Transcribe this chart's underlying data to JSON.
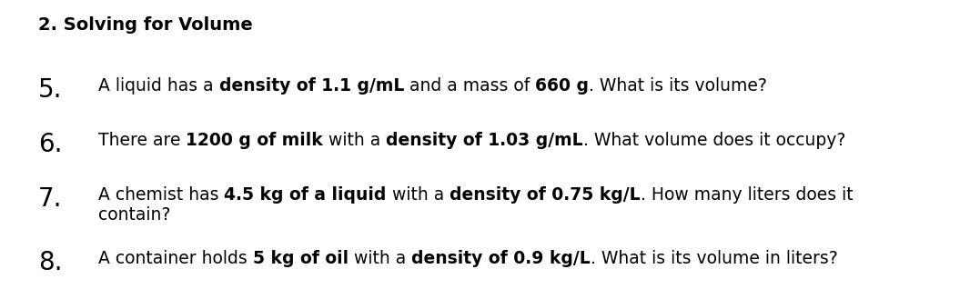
{
  "background_color": "#ffffff",
  "title": "2. Solving for Volume",
  "title_fontsize": 14,
  "questions": [
    {
      "number": "5.",
      "number_fontsize": 20,
      "text_fontsize": 13.5,
      "segments": [
        {
          "text": "A liquid has a ",
          "bold": false
        },
        {
          "text": "density of 1.1 g/mL",
          "bold": true
        },
        {
          "text": " and a mass of ",
          "bold": false
        },
        {
          "text": "660 g",
          "bold": true
        },
        {
          "text": ". What is its volume?",
          "bold": false
        }
      ]
    },
    {
      "number": "6.",
      "number_fontsize": 20,
      "text_fontsize": 13.5,
      "segments": [
        {
          "text": "There are ",
          "bold": false
        },
        {
          "text": "1200 g of milk",
          "bold": true
        },
        {
          "text": " with a ",
          "bold": false
        },
        {
          "text": "density of 1.03 g/mL",
          "bold": true
        },
        {
          "text": ". What volume does it occupy?",
          "bold": false
        }
      ]
    },
    {
      "number": "7.",
      "number_fontsize": 20,
      "text_fontsize": 13.5,
      "segments": [
        {
          "text": "A chemist has ",
          "bold": false
        },
        {
          "text": "4.5 kg of a liquid",
          "bold": true
        },
        {
          "text": " with a ",
          "bold": false
        },
        {
          "text": "density of 0.75 kg/L",
          "bold": true
        },
        {
          "text": ". How many liters does it",
          "bold": false
        },
        {
          "text": "\ncontain?",
          "bold": false,
          "newline": true
        }
      ]
    },
    {
      "number": "8.",
      "number_fontsize": 20,
      "text_fontsize": 13.5,
      "segments": [
        {
          "text": "A container holds ",
          "bold": false
        },
        {
          "text": "5 kg of oil",
          "bold": true
        },
        {
          "text": " with a ",
          "bold": false
        },
        {
          "text": "density of 0.9 kg/L",
          "bold": true
        },
        {
          "text": ". What is its volume in liters?",
          "bold": false
        }
      ]
    }
  ]
}
